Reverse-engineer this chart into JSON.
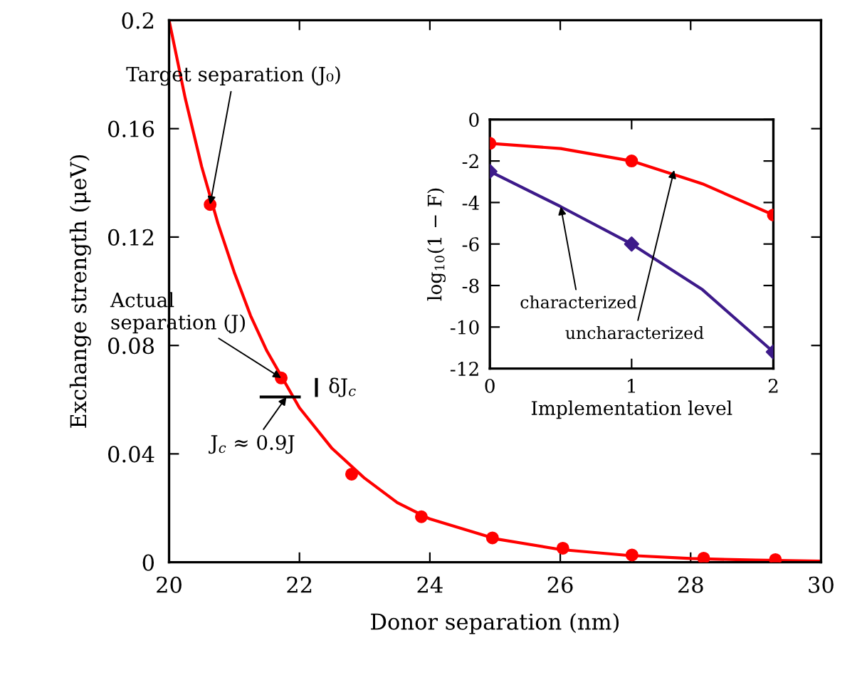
{
  "chart_data": [
    {
      "type": "line",
      "xlabel": "Donor separation (nm)",
      "ylabel": "Exchange strength (μeV)",
      "xlim": [
        20,
        30
      ],
      "xticks": [
        20,
        22,
        24,
        26,
        28,
        30
      ],
      "ylim": [
        0,
        0.2
      ],
      "yticks": [
        0,
        0.04,
        0.08,
        0.12,
        0.16,
        0.2
      ],
      "grid": false,
      "legend": false,
      "series": [
        {
          "color": "#ff0000",
          "marker": "none",
          "x": [
            20,
            20.25,
            20.5,
            20.75,
            21,
            21.25,
            21.5,
            22,
            22.5,
            23,
            23.5,
            24,
            25,
            26,
            27,
            28,
            29,
            30
          ],
          "values": [
            0.2,
            0.171,
            0.146,
            0.125,
            0.107,
            0.091,
            0.078,
            0.057,
            0.042,
            0.031,
            0.022,
            0.016,
            0.0087,
            0.0047,
            0.0026,
            0.0014,
            0.0008,
            0.0004
          ]
        },
        {
          "type": "scatter",
          "color": "#ff0000",
          "marker": "circle",
          "x": [
            20.63,
            21.72,
            22.8,
            23.87,
            24.96,
            26.04,
            27.1,
            28.2,
            29.3
          ],
          "values": [
            0.132,
            0.068,
            0.0325,
            0.0168,
            0.009,
            0.0052,
            0.0027,
            0.0015,
            0.001
          ]
        },
        {
          "color": "#000000",
          "marker": "none",
          "x": [
            21.39,
            22.02
          ],
          "values": [
            0.061,
            0.061
          ]
        },
        {
          "color": "#000000",
          "marker": "none",
          "x": [
            22.26,
            22.26
          ],
          "values": [
            0.061,
            0.068
          ]
        }
      ],
      "annotations": [
        {
          "text": "Target separation (J₀)",
          "x": 20.63,
          "y": 0.132
        },
        {
          "text": "Actual\nseparation (J)",
          "x": 21.72,
          "y": 0.068
        },
        {
          "text": "δJ$_{c}$",
          "x": 22.26,
          "y": 0.0645
        },
        {
          "text": "J$_{c}$ ≈ 0.9J",
          "x": 21.8,
          "y": 0.061
        }
      ]
    },
    {
      "type": "line",
      "xlabel": "Implementation level",
      "ylabel": "log$_{10}$(1 − F)",
      "xlim": [
        0,
        2
      ],
      "xticks": [
        0,
        1,
        2
      ],
      "ylim": [
        -12,
        0
      ],
      "yticks": [
        -12,
        -10,
        -8,
        -6,
        -4,
        -2,
        0
      ],
      "grid": false,
      "legend": false,
      "series": [
        {
          "color": "#ff0000",
          "marker": "none",
          "x": [
            0,
            0.5,
            1,
            1.5,
            2
          ],
          "values": [
            -1.15,
            -1.4,
            -2.0,
            -3.1,
            -4.6
          ]
        },
        {
          "color": "#3d1a8a",
          "marker": "none",
          "x": [
            0,
            0.5,
            1,
            1.5,
            2
          ],
          "values": [
            -2.5,
            -4.2,
            -6.0,
            -8.2,
            -11.2
          ]
        },
        {
          "type": "scatter",
          "color": "#ff0000",
          "marker": "circle",
          "x": [
            0,
            1,
            2
          ],
          "values": [
            -1.15,
            -2.0,
            -4.6
          ]
        },
        {
          "type": "scatter",
          "color": "#3d1a8a",
          "marker": "diamond",
          "x": [
            0,
            1,
            2
          ],
          "values": [
            -2.5,
            -6.0,
            -11.2
          ]
        }
      ],
      "annotations": [
        {
          "text": "characterized",
          "x": 0.5,
          "y": -4.2
        },
        {
          "text": "uncharacterized",
          "x": 1.3,
          "y": -2.44
        }
      ]
    }
  ]
}
